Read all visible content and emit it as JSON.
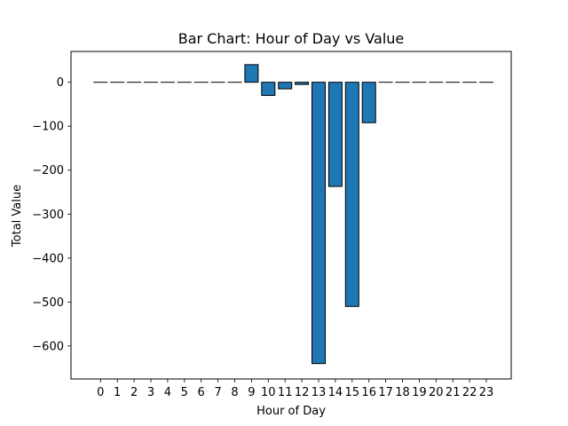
{
  "chart_data": {
    "type": "bar",
    "title": "Bar Chart: Hour of Day vs Value",
    "xlabel": "Hour of Day",
    "ylabel": "Total Value",
    "categories": [
      "0",
      "1",
      "2",
      "3",
      "4",
      "5",
      "6",
      "7",
      "8",
      "9",
      "10",
      "11",
      "12",
      "13",
      "14",
      "15",
      "16",
      "17",
      "18",
      "19",
      "20",
      "21",
      "22",
      "23"
    ],
    "values": [
      0,
      0,
      0,
      0,
      0,
      0,
      0,
      0,
      0,
      40,
      -30,
      -15,
      -5,
      -640,
      -237,
      -510,
      -92,
      0,
      0,
      0,
      0,
      0,
      0,
      0
    ],
    "yticks": [
      0,
      -100,
      -200,
      -300,
      -400,
      -500,
      -600
    ],
    "ytick_labels": [
      "0",
      "−100",
      "−200",
      "−300",
      "−400",
      "−500",
      "−600"
    ],
    "ylim": [
      -675,
      70
    ],
    "grid": false,
    "bar_color": "#1f77b4",
    "edge_color": "#000000"
  }
}
